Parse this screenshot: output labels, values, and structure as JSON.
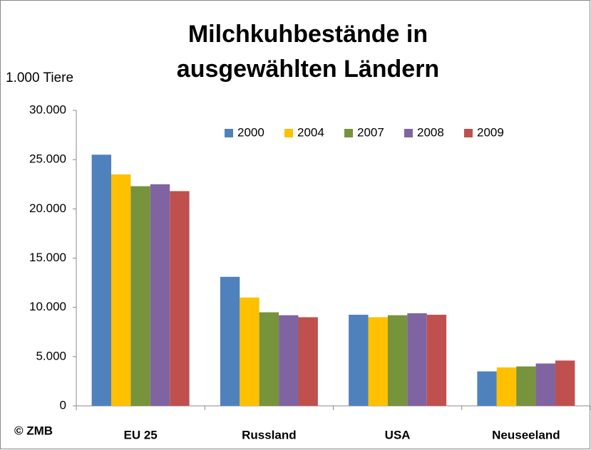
{
  "chart_data": {
    "type": "bar",
    "title": [
      "Milchkuhbestände in",
      "ausgewählten Ländern"
    ],
    "y_axis_label": "1.000 Tiere",
    "source": "© ZMB",
    "categories": [
      "EU 25",
      "Russland",
      "USA",
      "Neuseeland"
    ],
    "series": [
      {
        "name": "2000",
        "color": "#4f81bd",
        "values": [
          25500,
          13100,
          9250,
          3500
        ]
      },
      {
        "name": "2004",
        "color": "#ffc000",
        "values": [
          23500,
          11000,
          9000,
          3900
        ]
      },
      {
        "name": "2007",
        "color": "#77933c",
        "values": [
          22300,
          9500,
          9200,
          4000
        ]
      },
      {
        "name": "2008",
        "color": "#8064a2",
        "values": [
          22500,
          9200,
          9400,
          4300
        ]
      },
      {
        "name": "2009",
        "color": "#c0504d",
        "values": [
          21800,
          9000,
          9250,
          4600
        ]
      }
    ],
    "ylim": [
      0,
      30000
    ],
    "yticks": [
      0,
      {
        "value": 5000,
        "label": "5.000"
      },
      {
        "value": 10000,
        "label": "10.000"
      },
      {
        "value": 15000,
        "label": "15.000"
      },
      {
        "value": 20000,
        "label": "20.000"
      },
      {
        "value": 25000,
        "label": "25.000"
      },
      {
        "value": 30000,
        "label": "30.000"
      }
    ],
    "legend": "top-right"
  }
}
